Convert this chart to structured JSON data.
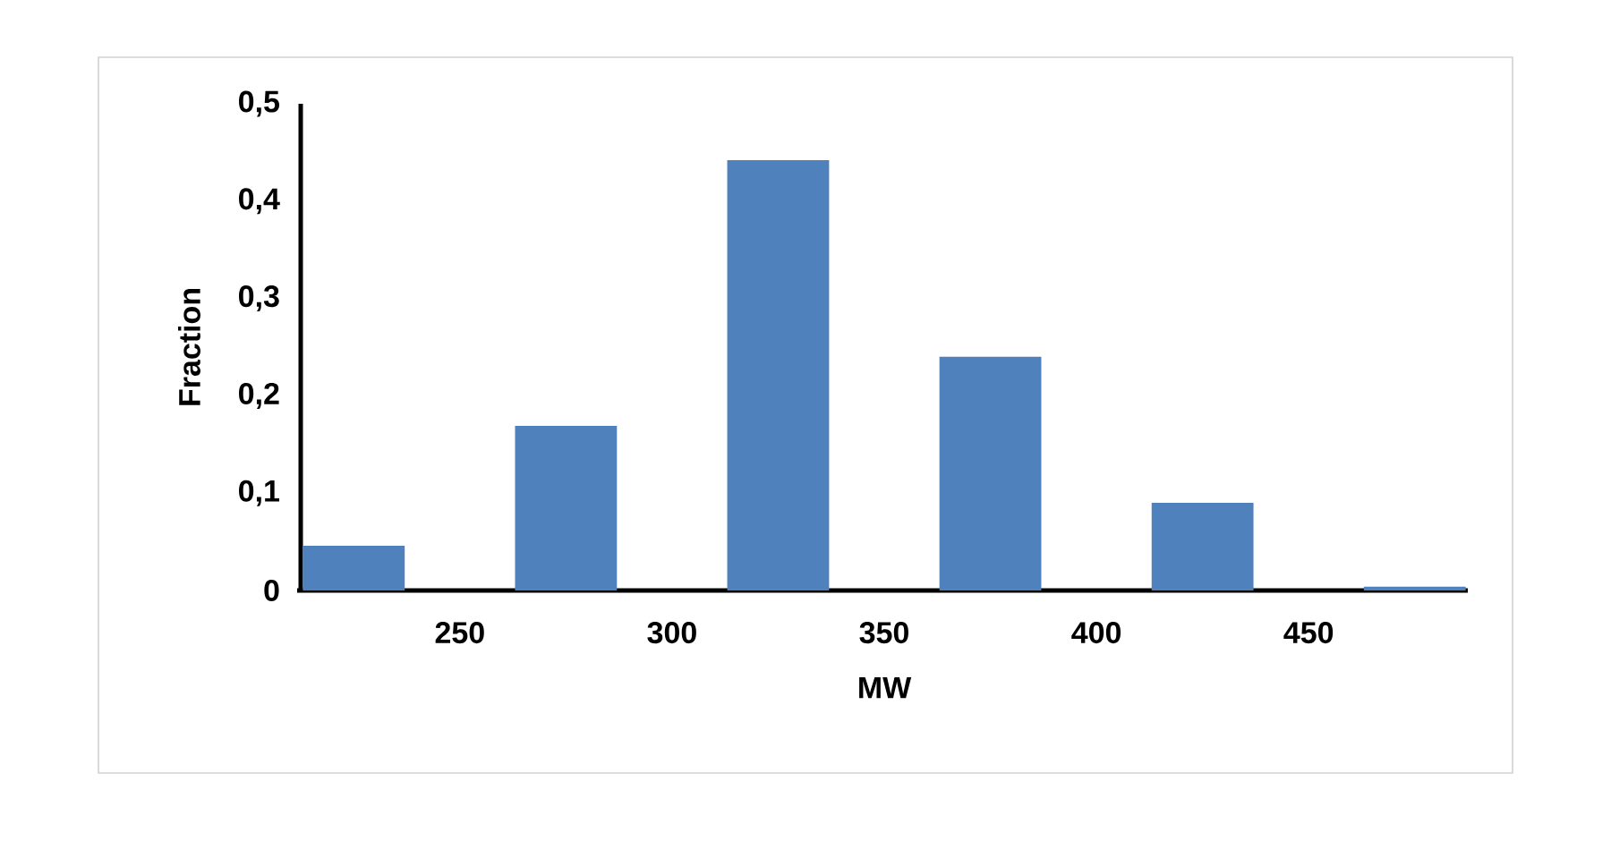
{
  "chart_data": {
    "type": "bar",
    "xlabel": "MW",
    "ylabel": "Fraction",
    "x": [
      225,
      275,
      325,
      375,
      425,
      475
    ],
    "values": [
      0.046,
      0.169,
      0.442,
      0.24,
      0.09,
      0.004
    ],
    "color": "#4f81bd",
    "xlim": [
      212.5,
      487.5
    ],
    "xticks": [
      250,
      300,
      350,
      400,
      450
    ],
    "ylim": [
      0,
      0.5
    ],
    "yticks": [
      0,
      {
        "value": 0.1,
        "label": "0,1"
      },
      {
        "value": 0.2,
        "label": "0,2"
      },
      {
        "value": 0.3,
        "label": "0,3"
      },
      {
        "value": 0.4,
        "label": "0,4"
      },
      {
        "value": 0.5,
        "label": "0,5"
      }
    ]
  }
}
